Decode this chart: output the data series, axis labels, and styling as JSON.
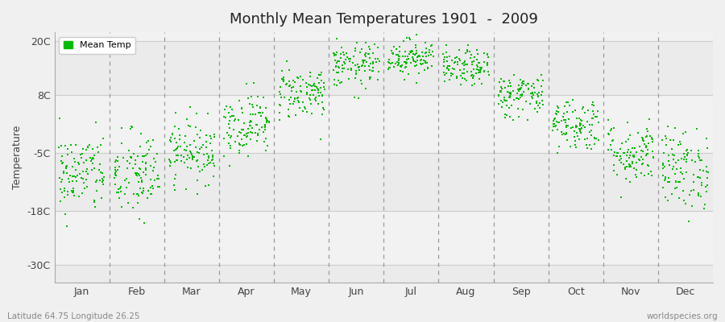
{
  "title": "Monthly Mean Temperatures 1901  -  2009",
  "ylabel": "Temperature",
  "xlabel_labels": [
    "Jan",
    "Feb",
    "Mar",
    "Apr",
    "May",
    "Jun",
    "Jul",
    "Aug",
    "Sep",
    "Oct",
    "Nov",
    "Dec"
  ],
  "ytick_labels": [
    "20C",
    "8C",
    "-5C",
    "-18C",
    "-30C"
  ],
  "ytick_values": [
    20,
    8,
    -5,
    -18,
    -30
  ],
  "ylim": [
    -34,
    22
  ],
  "dot_color": "#00bb00",
  "dot_size": 2.5,
  "background_color": "#f0f0f0",
  "plot_bg_upper": "#ffffff",
  "plot_bg_lower": "#e8e8e8",
  "legend_label": "Mean Temp",
  "footer_left": "Latitude 64.75 Longitude 26.25",
  "footer_right": "worldspecies.org",
  "monthly_means": [
    -9.5,
    -10.0,
    -4.5,
    1.5,
    8.5,
    14.5,
    16.5,
    14.0,
    8.0,
    1.5,
    -5.0,
    -8.5
  ],
  "monthly_stds": [
    4.5,
    5.0,
    3.5,
    3.5,
    3.0,
    2.5,
    2.0,
    2.0,
    2.5,
    3.0,
    3.5,
    4.5
  ],
  "n_years": 109,
  "seed": 42
}
